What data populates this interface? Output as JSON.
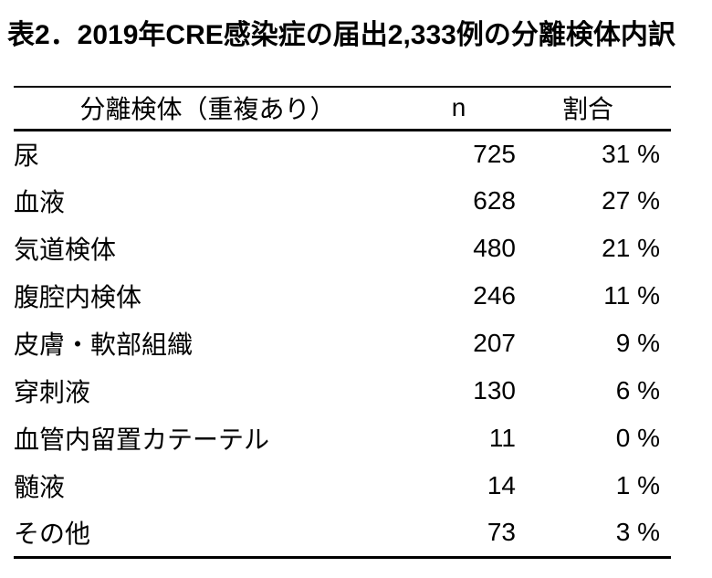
{
  "title": "表2．2019年CRE感染症の届出2,333例の分離検体内訳",
  "colors": {
    "background": "#ffffff",
    "text": "#000000",
    "rule": "#000000"
  },
  "table": {
    "headers": {
      "specimen": "分離検体（重複あり）",
      "n": "n",
      "ratio": "割合"
    },
    "rows": [
      {
        "label": "尿",
        "n": "725",
        "pct": "31 %"
      },
      {
        "label": "血液",
        "n": "628",
        "pct": "27 %"
      },
      {
        "label": "気道検体",
        "n": "480",
        "pct": "21 %"
      },
      {
        "label": "腹腔内検体",
        "n": "246",
        "pct": "11 %"
      },
      {
        "label": "皮膚・軟部組織",
        "n": "207",
        "pct": "9 %"
      },
      {
        "label": "穿刺液",
        "n": "130",
        "pct": "6 %"
      },
      {
        "label": "血管内留置カテーテル",
        "n": "11",
        "pct": "0 %"
      },
      {
        "label": "髄液",
        "n": "14",
        "pct": "1 %"
      },
      {
        "label": "その他",
        "n": "73",
        "pct": "3 %"
      }
    ]
  },
  "chart_data": {
    "type": "table",
    "title": "表2．2019年CRE感染症の届出2,333例の分離検体内訳",
    "total_reported_cases": "2,333",
    "columns": [
      "分離検体（重複あり）",
      "n",
      "割合"
    ],
    "rows": [
      [
        "尿",
        725,
        "31 %"
      ],
      [
        "血液",
        628,
        "27 %"
      ],
      [
        "気道検体",
        480,
        "21 %"
      ],
      [
        "腹腔内検体",
        246,
        "11 %"
      ],
      [
        "皮膚・軟部組織",
        207,
        "9 %"
      ],
      [
        "穿刺液",
        130,
        "6 %"
      ],
      [
        "血管内留置カテーテル",
        11,
        "0 %"
      ],
      [
        "髄液",
        14,
        "1 %"
      ],
      [
        "その他",
        73,
        "3 %"
      ]
    ]
  }
}
